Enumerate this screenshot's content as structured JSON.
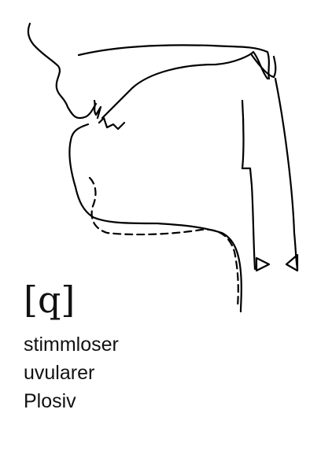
{
  "sound": {
    "ipa_symbol": "[q]",
    "description_lines": [
      "stimmloser",
      "uvularer",
      "Plosiv"
    ]
  },
  "colors": {
    "ink": "#000000",
    "background": "#ffffff"
  }
}
